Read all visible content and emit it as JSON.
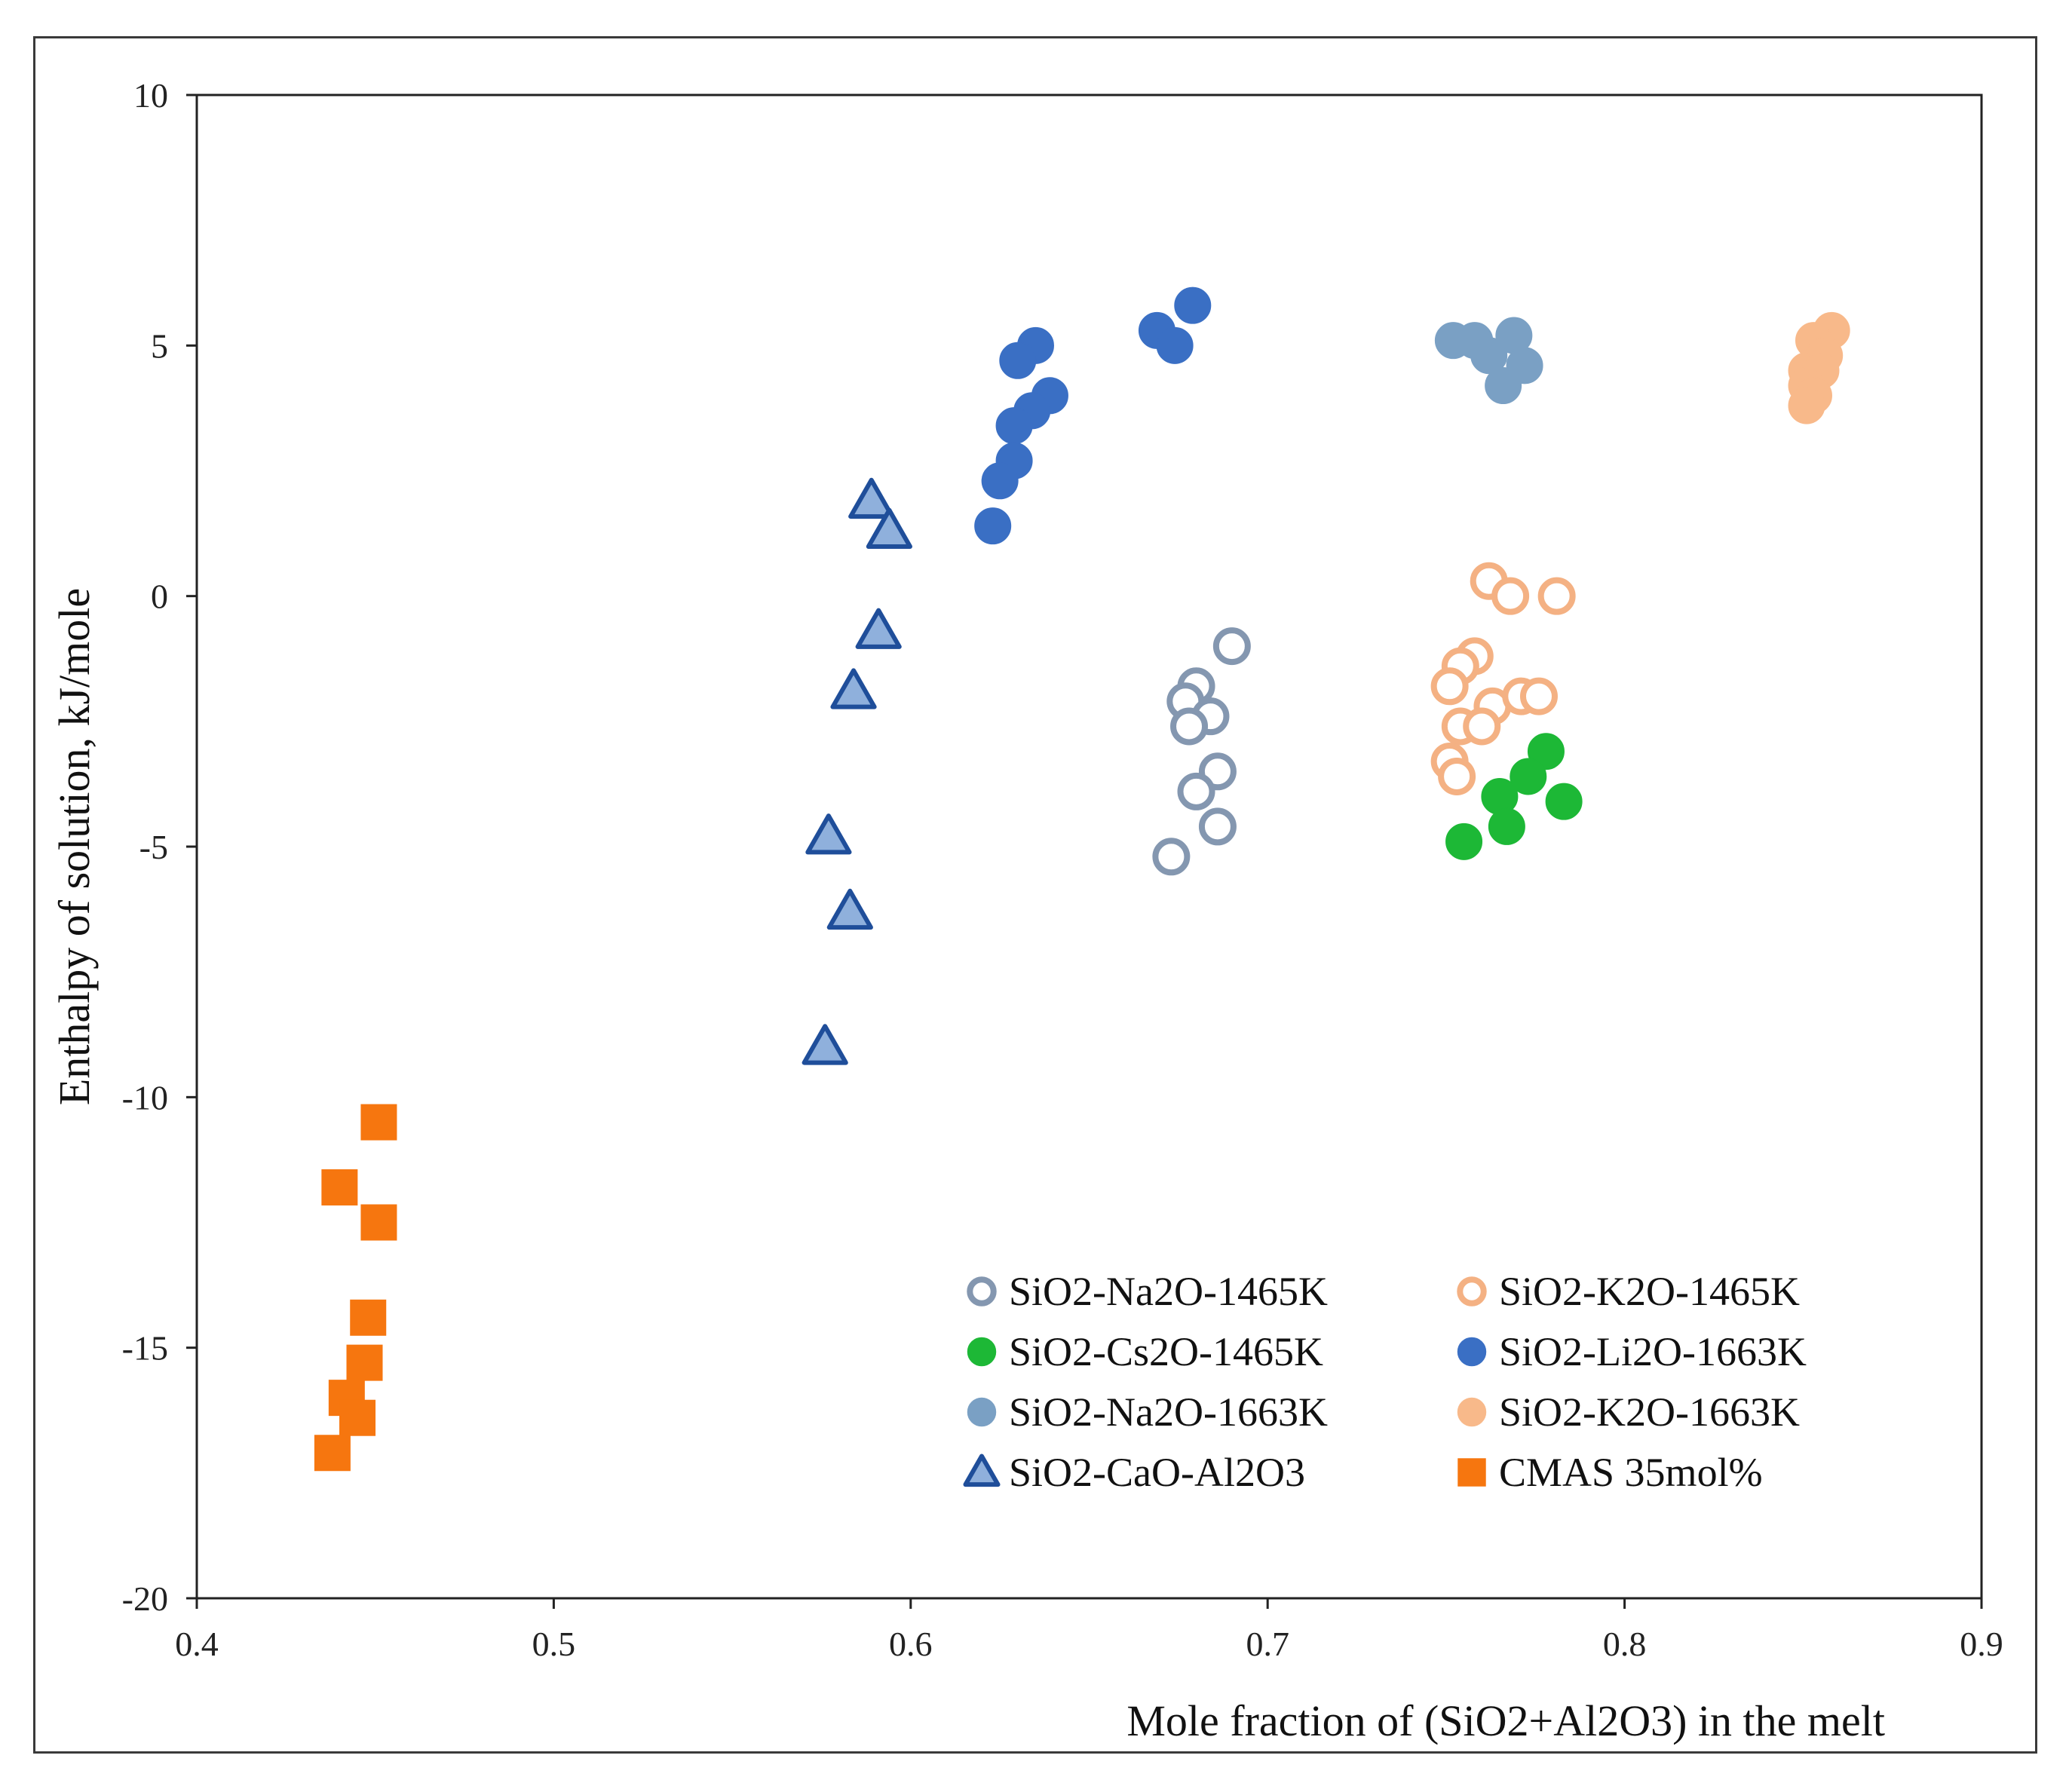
{
  "chart_data": {
    "type": "scatter",
    "title": "",
    "xlabel": "Mole fraction of (SiO2+Al2O3) in the melt",
    "ylabel": "Enthalpy of solution, kJ/mole",
    "xlim": [
      0.4,
      0.9
    ],
    "ylim": [
      -20,
      10
    ],
    "xticks": [
      "0.4",
      "0.5",
      "0.6",
      "0.7",
      "0.8",
      "0.9"
    ],
    "yticks": [
      "10",
      "5",
      "0",
      "-5",
      "-10",
      "-15",
      "-20"
    ],
    "grid": false,
    "legend_position": "bottom-right",
    "series": [
      {
        "name": "SiO2-Na2O-1465K",
        "marker": "circle-open",
        "color": "#8497b0",
        "points": [
          [
            0.69,
            -1.0
          ],
          [
            0.68,
            -1.8
          ],
          [
            0.677,
            -2.1
          ],
          [
            0.684,
            -2.4
          ],
          [
            0.678,
            -2.6
          ],
          [
            0.686,
            -3.5
          ],
          [
            0.68,
            -3.9
          ],
          [
            0.686,
            -4.6
          ],
          [
            0.673,
            -5.2
          ]
        ]
      },
      {
        "name": "SiO2-K2O-1465K",
        "marker": "circle-open",
        "color": "#f4b183",
        "points": [
          [
            0.762,
            0.3
          ],
          [
            0.768,
            0.0
          ],
          [
            0.781,
            0.0
          ],
          [
            0.758,
            -1.2
          ],
          [
            0.754,
            -1.4
          ],
          [
            0.751,
            -1.8
          ],
          [
            0.763,
            -2.2
          ],
          [
            0.771,
            -2.0
          ],
          [
            0.776,
            -2.0
          ],
          [
            0.754,
            -2.6
          ],
          [
            0.76,
            -2.6
          ],
          [
            0.751,
            -3.3
          ],
          [
            0.753,
            -3.6
          ]
        ]
      },
      {
        "name": "SiO2-Cs2O-1465K",
        "marker": "circle-filled",
        "color": "#1db836",
        "points": [
          [
            0.778,
            -3.1
          ],
          [
            0.773,
            -3.6
          ],
          [
            0.765,
            -4.0
          ],
          [
            0.783,
            -4.1
          ],
          [
            0.767,
            -4.6
          ],
          [
            0.755,
            -4.9
          ]
        ]
      },
      {
        "name": "SiO2-Li2O-1663K",
        "marker": "circle-filled",
        "color": "#3a6fc4",
        "points": [
          [
            0.679,
            5.8
          ],
          [
            0.669,
            5.3
          ],
          [
            0.674,
            5.0
          ],
          [
            0.635,
            5.0
          ],
          [
            0.63,
            4.7
          ],
          [
            0.639,
            4.0
          ],
          [
            0.634,
            3.7
          ],
          [
            0.629,
            3.4
          ],
          [
            0.629,
            2.7
          ],
          [
            0.625,
            2.3
          ],
          [
            0.623,
            1.4
          ]
        ]
      },
      {
        "name": "SiO2-Na2O-1663K",
        "marker": "circle-filled",
        "color": "#7aa0c4",
        "points": [
          [
            0.752,
            5.1
          ],
          [
            0.758,
            5.1
          ],
          [
            0.769,
            5.2
          ],
          [
            0.762,
            4.8
          ],
          [
            0.772,
            4.6
          ],
          [
            0.766,
            4.2
          ]
        ]
      },
      {
        "name": "SiO2-K2O-1663K",
        "marker": "circle-filled",
        "color": "#f8b98a",
        "points": [
          [
            0.858,
            5.3
          ],
          [
            0.853,
            5.1
          ],
          [
            0.856,
            4.8
          ],
          [
            0.851,
            4.5
          ],
          [
            0.855,
            4.5
          ],
          [
            0.851,
            4.2
          ],
          [
            0.853,
            4.0
          ],
          [
            0.851,
            3.8
          ]
        ]
      },
      {
        "name": "SiO2-CaO-Al2O3",
        "marker": "triangle",
        "color": "#8fb0dc",
        "edge": "#1f4e9a",
        "points": [
          [
            0.589,
            1.9
          ],
          [
            0.594,
            1.3
          ],
          [
            0.591,
            -0.7
          ],
          [
            0.584,
            -1.9
          ],
          [
            0.577,
            -4.8
          ],
          [
            0.583,
            -6.3
          ],
          [
            0.576,
            -9.0
          ]
        ]
      },
      {
        "name": "CMAS 35mol%",
        "marker": "square",
        "color": "#f6760f",
        "points": [
          [
            0.451,
            -10.5
          ],
          [
            0.44,
            -11.8
          ],
          [
            0.451,
            -12.5
          ],
          [
            0.448,
            -14.4
          ],
          [
            0.447,
            -15.3
          ],
          [
            0.442,
            -16.0
          ],
          [
            0.445,
            -16.4
          ],
          [
            0.438,
            -17.1
          ]
        ]
      }
    ]
  }
}
